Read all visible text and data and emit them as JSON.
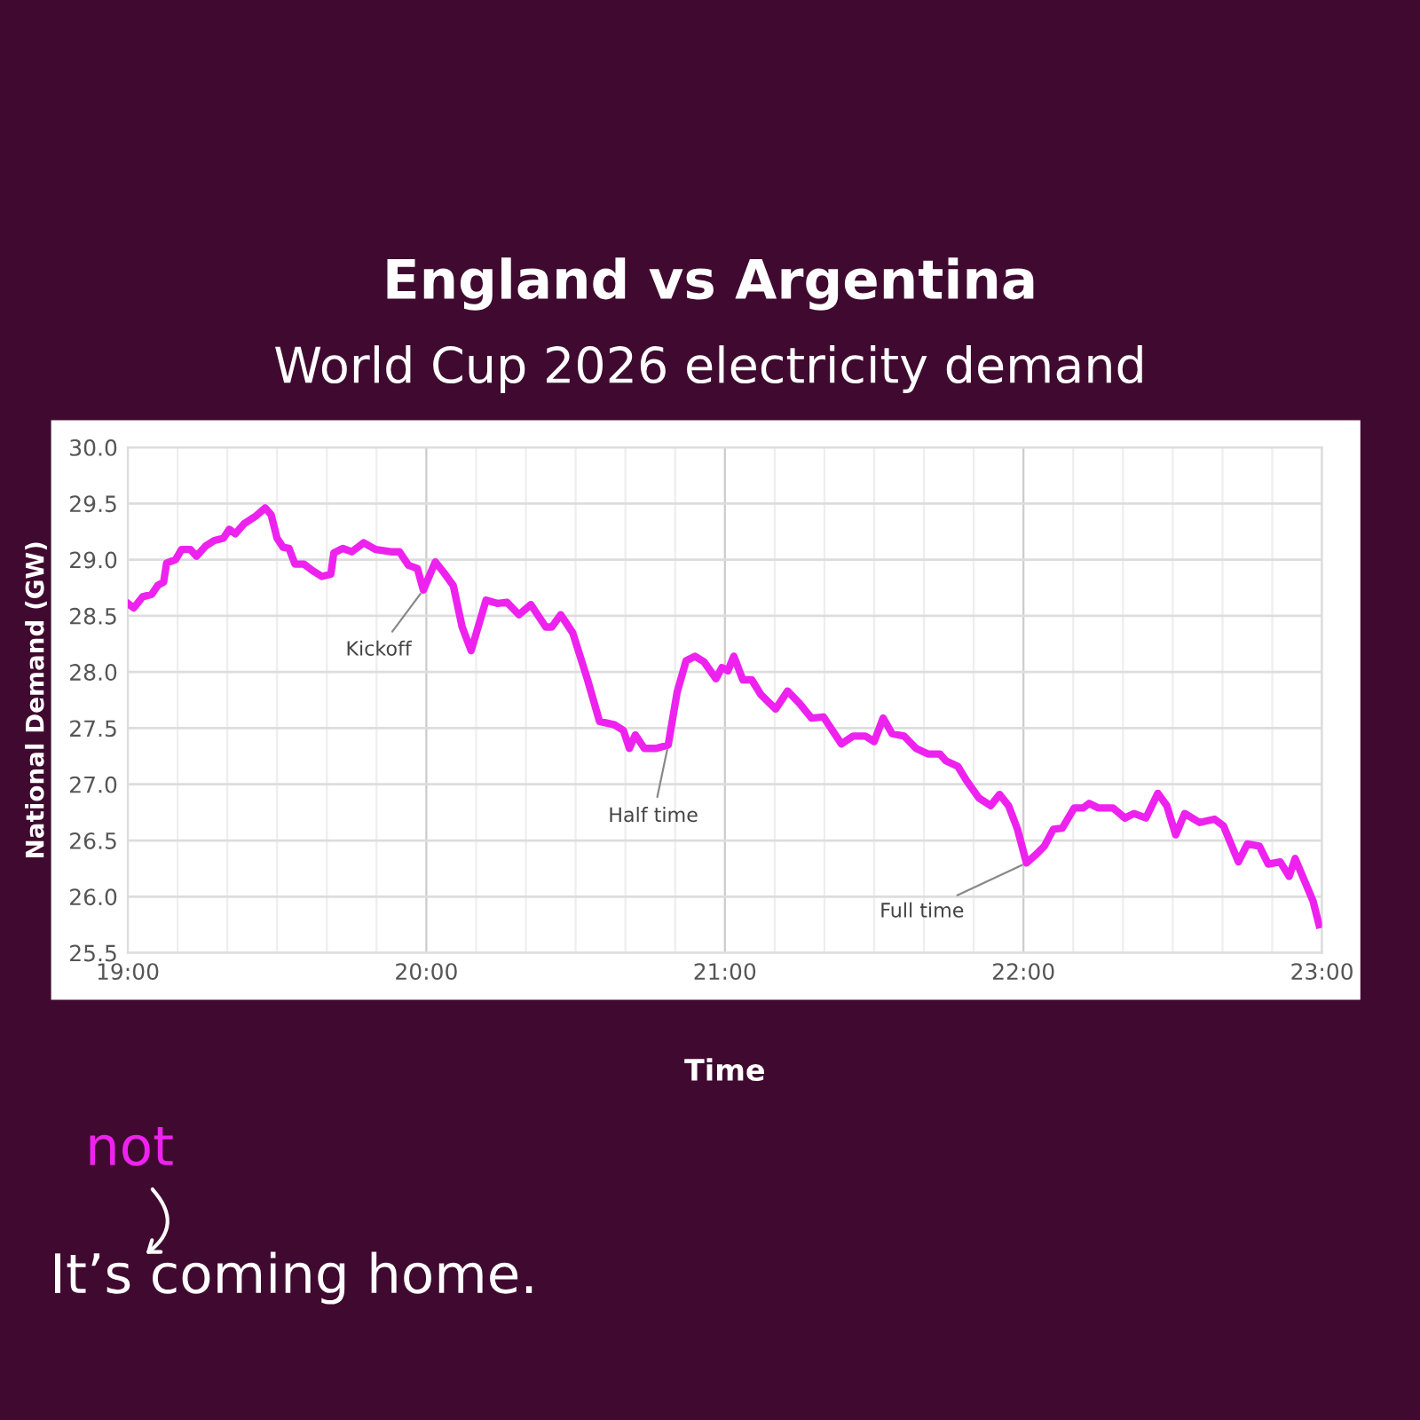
{
  "chart_data": {
    "type": "line",
    "title": "England vs Argentina",
    "subtitle": "World Cup 2026 electricity demand",
    "xlabel": "Time",
    "ylabel": "National Demand (GW)",
    "x": [
      19.0,
      19.02,
      19.05,
      19.08,
      19.1,
      19.12,
      19.13,
      19.16,
      19.18,
      19.21,
      19.23,
      19.26,
      19.29,
      19.32,
      19.34,
      19.36,
      19.39,
      19.43,
      19.46,
      19.48,
      19.5,
      19.52,
      19.54,
      19.56,
      19.59,
      19.62,
      19.65,
      19.68,
      19.69,
      19.72,
      19.75,
      19.79,
      19.83,
      19.88,
      19.91,
      19.94,
      19.97,
      19.99,
      20.03,
      20.06,
      20.09,
      20.12,
      20.15,
      20.2,
      20.24,
      20.27,
      20.31,
      20.35,
      20.4,
      20.42,
      20.45,
      20.49,
      20.54,
      20.58,
      20.63,
      20.66,
      20.68,
      20.7,
      20.73,
      20.77,
      20.81,
      20.84,
      20.87,
      20.9,
      20.93,
      20.97,
      20.99,
      21.01,
      21.03,
      21.06,
      21.09,
      21.12,
      21.17,
      21.21,
      21.25,
      21.29,
      21.33,
      21.39,
      21.43,
      21.47,
      21.5,
      21.53,
      21.56,
      21.6,
      21.64,
      21.68,
      21.72,
      21.74,
      21.78,
      21.81,
      21.85,
      21.89,
      21.92,
      21.95,
      21.98,
      22.01,
      22.04,
      22.07,
      22.1,
      22.13,
      22.17,
      22.2,
      22.22,
      22.25,
      22.3,
      22.34,
      22.37,
      22.41,
      22.45,
      22.48,
      22.51,
      22.54,
      22.59,
      22.64,
      22.67,
      22.72,
      22.75,
      22.79,
      22.82,
      22.86,
      22.89,
      22.91,
      22.94,
      22.97,
      22.99
    ],
    "series": [
      {
        "color": "#ee22ee",
        "values": [
          28.61,
          28.57,
          28.67,
          28.69,
          28.77,
          28.8,
          28.97,
          29.0,
          29.09,
          29.09,
          29.03,
          29.12,
          29.17,
          29.19,
          29.27,
          29.23,
          29.32,
          29.39,
          29.46,
          29.4,
          29.19,
          29.11,
          29.1,
          28.96,
          28.96,
          28.9,
          28.85,
          28.87,
          29.06,
          29.1,
          29.07,
          29.15,
          29.09,
          29.07,
          29.07,
          28.95,
          28.92,
          28.73,
          28.98,
          28.88,
          28.77,
          28.4,
          28.19,
          28.64,
          28.61,
          28.62,
          28.51,
          28.6,
          28.4,
          28.4,
          28.51,
          28.35,
          27.93,
          27.56,
          27.53,
          27.48,
          27.32,
          27.44,
          27.32,
          27.32,
          27.35,
          27.82,
          28.1,
          28.14,
          28.09,
          27.94,
          28.04,
          28.01,
          28.14,
          27.93,
          27.93,
          27.8,
          27.67,
          27.83,
          27.72,
          27.59,
          27.6,
          27.36,
          27.43,
          27.43,
          27.38,
          27.59,
          27.45,
          27.43,
          27.32,
          27.27,
          27.27,
          27.21,
          27.16,
          27.03,
          26.88,
          26.81,
          26.91,
          26.81,
          26.6,
          26.3,
          26.37,
          26.45,
          26.6,
          26.61,
          26.79,
          26.79,
          26.83,
          26.79,
          26.79,
          26.7,
          26.74,
          26.7,
          26.92,
          26.81,
          26.55,
          26.74,
          26.66,
          26.69,
          26.63,
          26.31,
          26.47,
          26.45,
          26.29,
          26.31,
          26.18,
          26.34,
          26.15,
          25.96,
          25.75
        ]
      }
    ],
    "xlim": [
      19,
      23
    ],
    "xticks": [
      {
        "value": 19,
        "label": "19:00"
      },
      {
        "value": 20,
        "label": "20:00"
      },
      {
        "value": 21,
        "label": "21:00"
      },
      {
        "value": 22,
        "label": "22:00"
      },
      {
        "value": 23,
        "label": "23:00"
      }
    ],
    "ylim": [
      25.5,
      30
    ],
    "yticks": [
      {
        "value": 25.5,
        "label": "25.5"
      },
      {
        "value": 26,
        "label": "26.0"
      },
      {
        "value": 26.5,
        "label": "26.5"
      },
      {
        "value": 27,
        "label": "27.0"
      },
      {
        "value": 27.5,
        "label": "27.5"
      },
      {
        "value": 28,
        "label": "28.0"
      },
      {
        "value": 28.5,
        "label": "28.5"
      },
      {
        "value": 29,
        "label": "29.0"
      },
      {
        "value": 29.5,
        "label": "29.5"
      },
      {
        "value": 30,
        "label": "30.0"
      }
    ],
    "grid": true,
    "marker": "none",
    "line_style": "solid",
    "annotations": [
      {
        "text": "Kickoff",
        "x": 19.99,
        "y": 28.73
      },
      {
        "text": "Half time",
        "x": 20.81,
        "y": 27.35
      },
      {
        "text": "Full time",
        "x": 22.01,
        "y": 26.3
      },
      "not",
      "It’s coming home."
    ]
  }
}
